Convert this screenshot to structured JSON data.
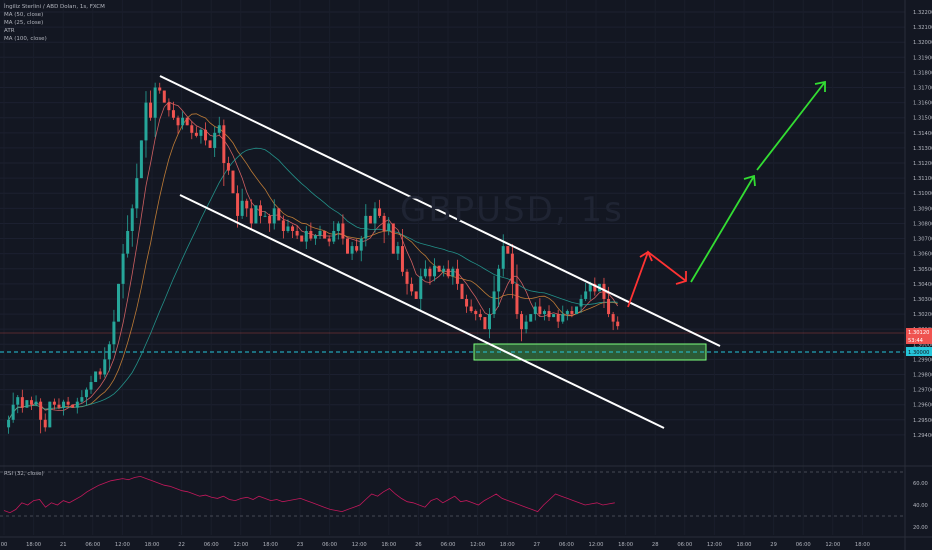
{
  "legend": {
    "symbol": "İngiliz Sterlini / ABD Doları, 1s, FXCM",
    "ma50": "MA (50, close)",
    "ma25": "MA (25, close)",
    "atr": "ATR",
    "ma100": "MA (100, close)",
    "rsi": "RSI (32, close)"
  },
  "watermark": "GBPUSD, 1s",
  "colors": {
    "background": "#131722",
    "bull": "#26a69a",
    "bear": "#ef5350",
    "channel": "#ffffff",
    "zone": "#4caf50",
    "arrow_up": "#33dd33",
    "arrow_red": "#ff3333",
    "ma_fast": "#ef6c6c",
    "ma_mid": "#d98c3a",
    "ma_slow": "#26a69a",
    "rsi": "#c2185b"
  },
  "chart_data": {
    "type": "candlestick",
    "ylim": [
      1.293,
      1.322
    ],
    "price_ticks": [
      "1.32200",
      "1.32100",
      "1.32000",
      "1.31900",
      "1.31800",
      "1.31700",
      "1.31600",
      "1.31500",
      "1.31400",
      "1.31300",
      "1.31200",
      "1.31100",
      "1.31000",
      "1.30900",
      "1.30800",
      "1.30700",
      "1.30600",
      "1.30500",
      "1.30400",
      "1.30300",
      "1.30200",
      "1.30100",
      "1.30000",
      "1.29900",
      "1.29800",
      "1.29700",
      "1.29600",
      "1.29500",
      "1.29400"
    ],
    "time_ticks": [
      "00",
      "18:00",
      "21",
      "06:00",
      "12:00",
      "18:00",
      "22",
      "06:00",
      "12:00",
      "18:00",
      "23",
      "06:00",
      "12:00",
      "18:00",
      "26",
      "06:00",
      "12:00",
      "18:00",
      "27",
      "06:00",
      "12:00",
      "18:00",
      "28",
      "06:00",
      "12:00",
      "18:00",
      "29",
      "06:00",
      "12:00",
      "18:00"
    ],
    "current_price": "1.30120",
    "countdown": "53:44",
    "support_price": "1.30000",
    "support_zone": [
      1.2998,
      1.3004
    ],
    "rsi_ticks": [
      "60.00",
      "40.00",
      "20.00"
    ],
    "rsi_levels": [
      70,
      30
    ],
    "rsi_ylim": [
      20,
      70
    ],
    "candle_path": [
      1.2945,
      1.295,
      1.296,
      1.2965,
      1.2958,
      1.2963,
      1.296,
      1.2962,
      1.295,
      1.2945,
      1.2962,
      1.296,
      1.2958,
      1.2962,
      1.296,
      1.2958,
      1.2962,
      1.2965,
      1.297,
      1.2975,
      1.2982,
      1.298,
      1.299,
      1.3,
      1.3015,
      1.304,
      1.306,
      1.3075,
      1.309,
      1.311,
      1.3135,
      1.316,
      1.315,
      1.317,
      1.3168,
      1.316,
      1.3155,
      1.315,
      1.3145,
      1.315,
      1.3145,
      1.314,
      1.3138,
      1.3142,
      1.3135,
      1.313,
      1.314,
      1.3145,
      1.312,
      1.3115,
      1.31,
      1.3085,
      1.3095,
      1.309,
      1.308,
      1.3092,
      1.3085,
      1.3085,
      1.308,
      1.309,
      1.3082,
      1.3075,
      1.3078,
      1.3075,
      1.3072,
      1.3068,
      1.3075,
      1.307,
      1.3072,
      1.3075,
      1.307,
      1.3068,
      1.3075,
      1.308,
      1.307,
      1.306,
      1.3065,
      1.3062,
      1.307,
      1.3085,
      1.308,
      1.309,
      1.3085,
      1.3075,
      1.308,
      1.306,
      1.3065,
      1.3048,
      1.304,
      1.3035,
      1.303,
      1.3045,
      1.305,
      1.3045,
      1.3052,
      1.3048,
      1.305,
      1.3045,
      1.305,
      1.304,
      1.303,
      1.3025,
      1.3022,
      1.302,
      1.3018,
      1.301,
      1.302,
      1.3035,
      1.305,
      1.3065,
      1.306,
      1.304,
      1.302,
      1.301,
      1.3015,
      1.302,
      1.3025,
      1.302,
      1.3022,
      1.3018,
      1.302,
      1.3015,
      1.302,
      1.3022,
      1.302,
      1.3025,
      1.303,
      1.3035,
      1.304,
      1.3035,
      1.304,
      1.303,
      1.302,
      1.3015,
      1.3012
    ],
    "rsi_path": [
      35,
      33,
      36,
      42,
      40,
      44,
      45,
      38,
      42,
      40,
      44,
      42,
      45,
      48,
      52,
      55,
      58,
      60,
      62,
      63,
      64,
      63,
      65,
      66,
      64,
      62,
      60,
      58,
      57,
      55,
      53,
      52,
      50,
      48,
      49,
      47,
      46,
      48,
      45,
      44,
      46,
      47,
      45,
      48,
      46,
      44,
      45,
      43,
      44,
      45,
      46,
      44,
      42,
      40,
      38,
      36,
      35,
      34,
      36,
      38,
      40,
      45,
      50,
      48,
      52,
      55,
      50,
      46,
      43,
      42,
      40,
      38,
      44,
      46,
      42,
      45,
      48,
      43,
      44,
      42,
      40,
      44,
      47,
      50,
      46,
      44,
      42,
      40,
      38,
      36,
      34,
      40,
      45,
      50,
      48,
      46,
      44,
      42,
      40,
      41,
      42,
      40,
      41,
      42
    ]
  }
}
